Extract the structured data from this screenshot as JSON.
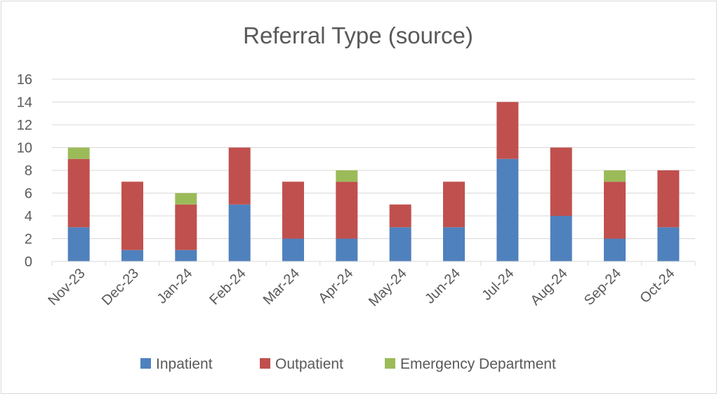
{
  "chart_data": {
    "type": "bar",
    "stacked": true,
    "title": "Referral Type (source)",
    "xlabel": "",
    "ylabel": "",
    "categories": [
      "Nov-23",
      "Dec-23",
      "Jan-24",
      "Feb-24",
      "Mar-24",
      "Apr-24",
      "May-24",
      "Jun-24",
      "Jul-24",
      "Aug-24",
      "Sep-24",
      "Oct-24"
    ],
    "ylim": [
      0,
      16
    ],
    "yticks": [
      0,
      2,
      4,
      6,
      8,
      10,
      12,
      14,
      16
    ],
    "grid": true,
    "legend_position": "bottom",
    "series": [
      {
        "name": "Inpatient",
        "color": "#4f81bd",
        "values": [
          3,
          1,
          1,
          5,
          2,
          2,
          3,
          3,
          9,
          4,
          2,
          3
        ]
      },
      {
        "name": "Outpatient",
        "color": "#c0504d",
        "values": [
          6,
          6,
          4,
          5,
          5,
          5,
          2,
          4,
          5,
          6,
          5,
          5
        ]
      },
      {
        "name": "Emergency Department",
        "color": "#9bbb59",
        "values": [
          1,
          0,
          1,
          0,
          0,
          1,
          0,
          0,
          0,
          0,
          1,
          0
        ]
      }
    ]
  }
}
